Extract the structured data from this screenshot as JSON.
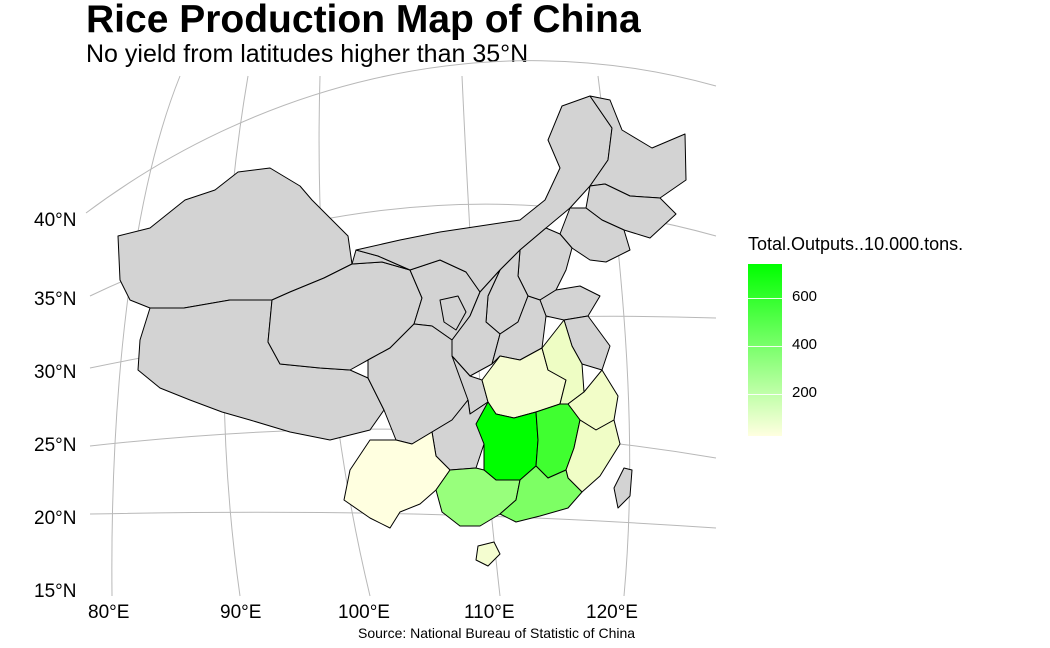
{
  "title": "Rice Production Map of China",
  "subtitle": "No yield from latitudes higher than 35°N",
  "caption": "Source: National Bureau of Statistic of China",
  "axes": {
    "lat_labels": [
      "40°N",
      "35°N",
      "30°N",
      "25°N",
      "20°N",
      "15°N"
    ],
    "lon_labels": [
      "80°E",
      "90°E",
      "100°E",
      "110°E",
      "120°E"
    ]
  },
  "legend": {
    "title": "Total.Outputs..10.000.tons.",
    "labels": [
      "600",
      "400",
      "200"
    ],
    "values": [
      600,
      400,
      200
    ],
    "min_color": "#ffffe0",
    "max_color": "#00ff00"
  },
  "colors": {
    "no_data": "#d3d3d3",
    "border": "#000000",
    "graticule": "#b8b8b8"
  },
  "chart_data": {
    "type": "map",
    "regions": [
      {
        "region": "Hunan",
        "level": "highest"
      },
      {
        "region": "Jiangxi",
        "level": "high"
      },
      {
        "region": "Guangxi",
        "level": "medium"
      },
      {
        "region": "Guangdong",
        "level": "medium"
      },
      {
        "region": "Hubei",
        "level": "low"
      },
      {
        "region": "Anhui",
        "level": "low"
      },
      {
        "region": "Zhejiang",
        "level": "low"
      },
      {
        "region": "Fujian",
        "level": "low"
      },
      {
        "region": "Yunnan",
        "level": "low"
      },
      {
        "region": "Hainan",
        "level": "low"
      }
    ]
  }
}
